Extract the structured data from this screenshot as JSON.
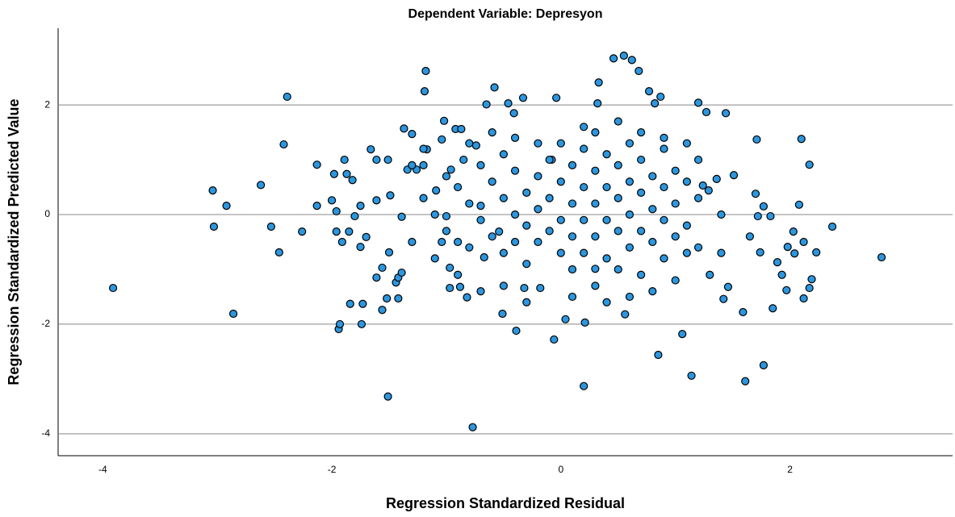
{
  "chart_data": {
    "type": "scatter",
    "title": "Dependent Variable: Depresyon",
    "x_label": "Regression Standardized Residual",
    "y_label": "Regression Standardized Predicted Value",
    "color": "#2c96de",
    "grid": true,
    "xlim": [
      -4.39,
      3.42
    ],
    "ylim": [
      -4.4,
      3.4
    ],
    "xticks": [
      -4,
      -2,
      0,
      2
    ],
    "yticks": [
      -4,
      -2,
      0,
      2
    ],
    "x": [
      -3.91,
      -3.04,
      -3.03,
      -2.92,
      -2.86,
      -2.62,
      -2.53,
      -2.46,
      -2.42,
      -2.39,
      -2.26,
      -2.13,
      -2.13,
      -2.0,
      -1.98,
      -1.96,
      -1.96,
      -1.94,
      -1.93,
      -1.91,
      -1.89,
      -1.87,
      -1.85,
      -1.82,
      -1.84,
      -1.8,
      -1.75,
      -1.74,
      -1.73,
      -1.75,
      -1.7,
      -1.66,
      -1.61,
      -1.61,
      -1.61,
      -1.56,
      -1.56,
      -1.51,
      -1.52,
      -1.51,
      -1.49,
      -1.5,
      -1.44,
      -1.42,
      -1.39,
      -1.42,
      -1.39,
      -1.37,
      -1.34,
      -1.3,
      -1.26,
      -1.2,
      -1.18,
      -1.19,
      -1.17,
      -1.09,
      -1.04,
      -1.04,
      -1.02,
      -1.0,
      -0.97,
      -0.97,
      -0.96,
      -0.92,
      -0.9,
      -0.88,
      -0.87,
      -0.85,
      -0.77,
      -0.82,
      -0.74,
      -0.7,
      -0.67,
      -0.65,
      -0.58,
      -0.54,
      -0.51,
      -0.46,
      -0.41,
      -0.39,
      -0.33,
      -0.32,
      -0.18,
      -0.08,
      -0.06,
      -0.04,
      0.04,
      0.21,
      0.2,
      0.3,
      0.33,
      0.32,
      0.46,
      0.55,
      0.62,
      0.68,
      0.56,
      0.85,
      0.87,
      0.77,
      0.82,
      1.06,
      1.14,
      1.2,
      1.27,
      1.44,
      1.29,
      1.36,
      1.61,
      1.77,
      1.85,
      1.89,
      1.97,
      2.03,
      2.04,
      2.08,
      2.1,
      2.12,
      2.17,
      2.17,
      2.19,
      2.23,
      2.37,
      2.8,
      1.71,
      1.7,
      1.72,
      1.77,
      1.83,
      1.93,
      2.12,
      1.98,
      1.24,
      1.51,
      1.65,
      1.74,
      1.59,
      1.46,
      1.42,
      -1.2,
      -1.1,
      -1.0,
      -0.9,
      -0.8,
      -0.8,
      -0.7,
      -0.7,
      -0.6,
      -0.6,
      -0.5,
      -0.5,
      -0.5,
      -0.4,
      -0.4,
      -0.4,
      -0.3,
      -0.3,
      -0.3,
      -0.2,
      -0.2,
      -0.2,
      -0.1,
      -0.1,
      -0.1,
      0,
      0,
      0,
      0.1,
      0.1,
      0.1,
      0.1,
      0.2,
      0.2,
      0.2,
      0.2,
      0.3,
      0.3,
      0.3,
      0.3,
      0.4,
      0.4,
      0.4,
      0.4,
      0.5,
      0.5,
      0.5,
      0.5,
      0.6,
      0.6,
      0.6,
      0.6,
      0.7,
      0.7,
      0.7,
      0.7,
      0.8,
      0.8,
      0.8,
      0.9,
      0.9,
      0.9,
      0.9,
      1.0,
      1.0,
      1.0,
      1.0,
      1.1,
      1.1,
      1.1,
      1.2,
      1.2,
      1.2,
      1.3,
      1.4,
      1.4,
      -1.3,
      -1.3,
      -1.2,
      -1.1,
      -1.0,
      -0.9,
      -0.8,
      -0.7,
      -0.6,
      -0.5,
      -0.4,
      -0.3,
      -0.2,
      0,
      0.1,
      0.2,
      0.3,
      0.4,
      0.5,
      0.6,
      0.7,
      0.8,
      0.9,
      1.1
    ],
    "values": [
      -1.34,
      0.44,
      -0.22,
      0.16,
      -1.81,
      0.54,
      -0.22,
      -0.69,
      1.28,
      2.15,
      -0.31,
      0.91,
      0.16,
      0.26,
      0.74,
      0.06,
      -0.31,
      -2.09,
      -2.0,
      -0.5,
      1.0,
      0.74,
      -0.31,
      0.63,
      -1.63,
      -0.03,
      -0.59,
      -2.0,
      -1.63,
      0.16,
      -0.41,
      1.19,
      1.0,
      0.26,
      -1.15,
      -0.97,
      -1.74,
      1.0,
      -1.53,
      -3.32,
      0.35,
      -0.69,
      -1.24,
      -1.15,
      -1.06,
      -1.53,
      -0.04,
      1.57,
      0.82,
      1.47,
      0.82,
      0.9,
      2.62,
      2.25,
      1.19,
      0.44,
      1.37,
      -0.5,
      1.71,
      -0.03,
      -0.97,
      -1.34,
      0.82,
      1.56,
      -0.5,
      -1.32,
      1.56,
      1.0,
      -3.88,
      -1.51,
      1.26,
      0.16,
      -0.78,
      2.01,
      2.32,
      -0.31,
      -1.81,
      2.03,
      1.85,
      -2.12,
      2.13,
      -1.34,
      -1.34,
      1.0,
      -2.28,
      2.13,
      -1.91,
      -1.97,
      -3.13,
      -0.99,
      2.41,
      2.03,
      2.85,
      2.9,
      2.82,
      2.62,
      -1.82,
      -2.56,
      2.15,
      2.25,
      2.03,
      -2.18,
      -2.94,
      2.04,
      1.87,
      1.85,
      0.44,
      0.65,
      -3.04,
      -2.75,
      -1.71,
      -0.87,
      -1.38,
      -0.31,
      -0.71,
      0.18,
      1.38,
      -1.53,
      -1.34,
      0.91,
      -1.18,
      -0.69,
      -0.22,
      -0.78,
      1.37,
      0.38,
      -0.03,
      0.15,
      -0.03,
      -1.1,
      -0.5,
      -0.59,
      0.53,
      0.72,
      -0.4,
      -0.69,
      -1.78,
      -1.32,
      -1.54,
      0.3,
      0,
      -0.3,
      0.5,
      0.2,
      -0.6,
      0.9,
      -0.1,
      0.6,
      -0.4,
      0.3,
      -0.7,
      1.1,
      0,
      -0.5,
      0.8,
      0.4,
      -0.2,
      -0.9,
      0.7,
      0.1,
      -0.5,
      1.0,
      0.3,
      -0.3,
      0.6,
      -0.1,
      -0.7,
      0.9,
      0.2,
      -0.4,
      -1.0,
      1.2,
      0.5,
      -0.1,
      -0.7,
      0.8,
      0.2,
      -0.4,
      -1.3,
      1.1,
      0.5,
      -0.1,
      -0.8,
      0.9,
      0.3,
      -0.3,
      -1.0,
      1.3,
      0.6,
      0,
      -0.6,
      1.0,
      0.4,
      -0.3,
      -1.1,
      0.7,
      0.1,
      -0.5,
      1.2,
      0.5,
      -0.1,
      -0.8,
      0.8,
      0.2,
      -0.4,
      -1.2,
      0.6,
      -0.2,
      -0.7,
      1.0,
      0.3,
      -0.6,
      -1.1,
      0,
      -0.7,
      0.9,
      -0.5,
      1.2,
      -0.8,
      0.7,
      -1.1,
      1.3,
      -1.4,
      1.5,
      -1.3,
      1.4,
      -1.6,
      1.3,
      1.3,
      -1.5,
      1.6,
      1.5,
      -1.6,
      1.7,
      -1.5,
      1.5,
      -1.4,
      1.4,
      1.3
    ]
  }
}
